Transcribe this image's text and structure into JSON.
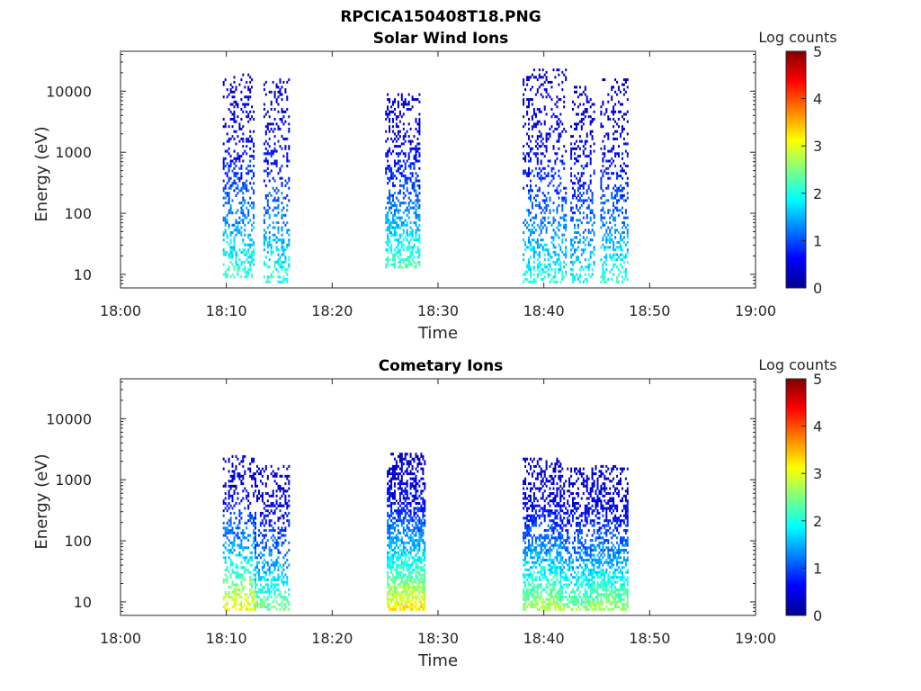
{
  "figure_title": "RPCICA150408T18.PNG",
  "colors": {
    "colormap": [
      "#00008f",
      "#0000ff",
      "#0080ff",
      "#00ffff",
      "#80ff80",
      "#ffff00",
      "#ff8000",
      "#ff0000",
      "#800000"
    ],
    "axis": "#262626"
  },
  "chart_data": [
    {
      "type": "heatmap",
      "title": "Solar Wind Ions",
      "xlabel": "Time",
      "ylabel": "Energy (eV)",
      "y_scale": "log",
      "ylim": [
        6,
        45000
      ],
      "xlim": [
        "18:00",
        "19:00"
      ],
      "x_tick_labels": [
        "18:00",
        "18:10",
        "18:20",
        "18:30",
        "18:40",
        "18:50",
        "19:00"
      ],
      "y_tick_labels": [
        "10",
        "100",
        "1000",
        "10000"
      ],
      "y_tick_values": [
        10,
        100,
        1000,
        10000
      ],
      "colorbar": {
        "label": "Log counts",
        "range": [
          0,
          5
        ],
        "ticks": [
          "0",
          "1",
          "2",
          "3",
          "4",
          "5"
        ]
      },
      "grid": false,
      "bursts": [
        {
          "start": "18:09:40",
          "end": "18:12:30",
          "emin": 8,
          "emax": 18000,
          "peak": 2.0,
          "density": 0.35
        },
        {
          "start": "18:13:30",
          "end": "18:15:50",
          "emin": 7,
          "emax": 15000,
          "peak": 1.9,
          "density": 0.3
        },
        {
          "start": "18:25:00",
          "end": "18:28:20",
          "emin": 12,
          "emax": 9000,
          "peak": 2.1,
          "density": 0.4
        },
        {
          "start": "18:38:00",
          "end": "18:42:00",
          "emin": 7,
          "emax": 23000,
          "peak": 1.8,
          "density": 0.3
        },
        {
          "start": "18:42:30",
          "end": "18:44:40",
          "emin": 7,
          "emax": 12000,
          "peak": 1.7,
          "density": 0.3
        },
        {
          "start": "18:45:20",
          "end": "18:47:50",
          "emin": 7,
          "emax": 15000,
          "peak": 1.9,
          "density": 0.3
        }
      ]
    },
    {
      "type": "heatmap",
      "title": "Cometary Ions",
      "xlabel": "Time",
      "ylabel": "Energy (eV)",
      "y_scale": "log",
      "ylim": [
        6,
        45000
      ],
      "xlim": [
        "18:00",
        "19:00"
      ],
      "x_tick_labels": [
        "18:00",
        "18:10",
        "18:20",
        "18:30",
        "18:40",
        "18:50",
        "19:00"
      ],
      "y_tick_labels": [
        "10",
        "100",
        "1000",
        "10000"
      ],
      "y_tick_values": [
        10,
        100,
        1000,
        10000
      ],
      "colorbar": {
        "label": "Log counts",
        "range": [
          0,
          5
        ],
        "ticks": [
          "0",
          "1",
          "2",
          "3",
          "4",
          "5"
        ]
      },
      "grid": false,
      "bursts": [
        {
          "start": "18:09:40",
          "end": "18:12:40",
          "emin": 7,
          "emax": 2500,
          "peak": 3.0,
          "density": 0.4
        },
        {
          "start": "18:12:40",
          "end": "18:15:50",
          "emin": 7,
          "emax": 1600,
          "peak": 2.3,
          "density": 0.4
        },
        {
          "start": "18:25:10",
          "end": "18:28:50",
          "emin": 7,
          "emax": 2600,
          "peak": 3.1,
          "density": 0.65
        },
        {
          "start": "18:38:00",
          "end": "18:41:30",
          "emin": 7,
          "emax": 2200,
          "peak": 2.6,
          "density": 0.55
        },
        {
          "start": "18:41:30",
          "end": "18:44:30",
          "emin": 7,
          "emax": 1500,
          "peak": 2.4,
          "density": 0.5
        },
        {
          "start": "18:44:30",
          "end": "18:47:50",
          "emin": 7,
          "emax": 1600,
          "peak": 2.5,
          "density": 0.55
        }
      ]
    }
  ]
}
